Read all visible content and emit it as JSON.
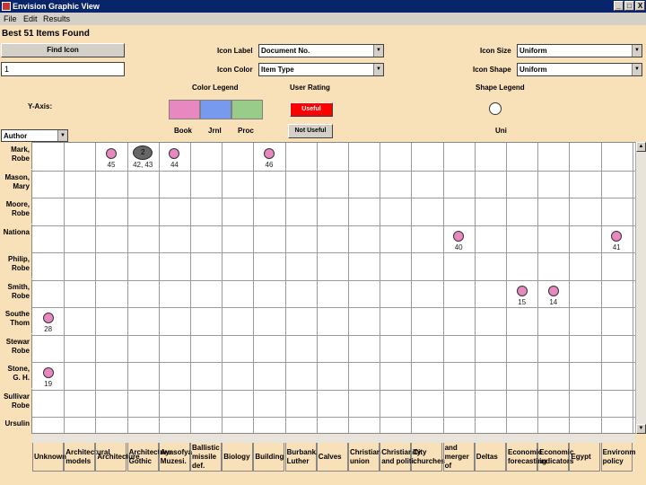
{
  "window": {
    "title": "Envision Graphic View",
    "min": "_",
    "max": "□",
    "close": "X"
  },
  "menu": [
    "File",
    "Edit",
    "Results"
  ],
  "header": {
    "summary": "Best 51 Items Found"
  },
  "find_icon": {
    "label": "Find Icon",
    "value": "1"
  },
  "icon_label": {
    "label": "Icon Label",
    "value": "Document No."
  },
  "icon_color": {
    "label": "Icon Color",
    "value": "Item Type"
  },
  "icon_size": {
    "label": "Icon Size",
    "value": "Uniform"
  },
  "icon_shape": {
    "label": "Icon Shape",
    "value": "Uniform"
  },
  "color_legend": {
    "title": "Color Legend",
    "items": [
      {
        "label": "Book",
        "color": "#e888c0"
      },
      {
        "label": "Jrnl",
        "color": "#7799ee"
      },
      {
        "label": "Proc",
        "color": "#99cc88"
      }
    ]
  },
  "user_rating": {
    "title": "User Rating",
    "useful": "Useful",
    "not_useful": "Not Useful",
    "useful_color": "#ff0000"
  },
  "shape_legend": {
    "title": "Shape Legend",
    "item": "Uni"
  },
  "y_axis": {
    "label": "Y-Axis:",
    "value": "Author"
  },
  "rows": [
    [
      "Mark,",
      "Robe"
    ],
    [
      "Mason,",
      "Mary"
    ],
    [
      "Moore,",
      "Robe"
    ],
    [
      "Nationa",
      ""
    ],
    [
      "Philip,",
      "Robe"
    ],
    [
      "Smith,",
      "Robe"
    ],
    [
      "Southe",
      "Thom"
    ],
    [
      "Stewar",
      "Robe"
    ],
    [
      "Stone,",
      "G. H."
    ],
    [
      "Sullivar",
      "Robe"
    ],
    [
      "Ursulin",
      ""
    ]
  ],
  "columns": [
    "Unknown",
    "Architectural models",
    "Architecture",
    "Architecture Gothic",
    "Ayasofya Muzesi.",
    "Ballistic missile def.",
    "Biology",
    "Building",
    "Burbank, Luther",
    "Calves",
    "Christian union",
    "Christianity and politi.",
    "City churches",
    "and merger of",
    "Deltas",
    "Economic forecasting",
    "Economic indicators",
    "Egypt",
    "Environmt. policy"
  ],
  "points": [
    {
      "row": 0,
      "col": 2,
      "label": "45",
      "type": "book"
    },
    {
      "row": 0,
      "col": 3,
      "label": "42, 43",
      "type": "group",
      "count": "2"
    },
    {
      "row": 0,
      "col": 4,
      "label": "44",
      "type": "book"
    },
    {
      "row": 0,
      "col": 7,
      "label": "46",
      "type": "book"
    },
    {
      "row": 3,
      "col": 13,
      "label": "40",
      "type": "book"
    },
    {
      "row": 3,
      "col": 18,
      "label": "41",
      "type": "book"
    },
    {
      "row": 5,
      "col": 15,
      "label": "15",
      "type": "book"
    },
    {
      "row": 5,
      "col": 16,
      "label": "14",
      "type": "book"
    },
    {
      "row": 6,
      "col": 0,
      "label": "28",
      "type": "book"
    },
    {
      "row": 8,
      "col": 0,
      "label": "19",
      "type": "book"
    }
  ],
  "scroll": {
    "up": "▲",
    "down": "▼"
  }
}
